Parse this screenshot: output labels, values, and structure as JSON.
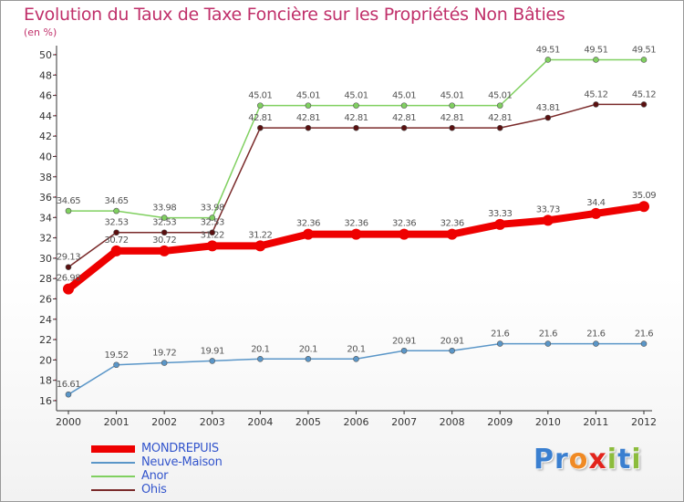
{
  "title": "Evolution du Taux de Taxe Foncière sur les Propriétés Non Bâties",
  "unit_label": "(en %)",
  "logo": {
    "letters": [
      "P",
      "r",
      "o",
      "x",
      "i",
      "t",
      "i"
    ],
    "colors": [
      "#3a7fd0",
      "#3a7fd0",
      "#f08a24",
      "#e2241c",
      "#8cbc3c",
      "#3a7fd0",
      "#8cbc3c"
    ]
  },
  "chart_data": {
    "type": "line",
    "title": "Evolution du Taux de Taxe Foncière sur les Propriétés Non Bâties",
    "ylabel": "(en %)",
    "xlabel": "",
    "x": [
      "2000",
      "2001",
      "2002",
      "2003",
      "2004",
      "2005",
      "2006",
      "2007",
      "2008",
      "2009",
      "2010",
      "2011",
      "2012"
    ],
    "ylim": [
      16,
      50
    ],
    "yticks": [
      16,
      18,
      20,
      22,
      24,
      26,
      28,
      30,
      32,
      34,
      36,
      38,
      40,
      42,
      44,
      46,
      48,
      50
    ],
    "grid": false,
    "legend": "bottom-left",
    "series": [
      {
        "name": "MONDREPUIS",
        "color": "#ee0000",
        "line_width": 8,
        "marker_r": 6,
        "values": [
          26.98,
          30.72,
          30.72,
          31.22,
          31.22,
          32.36,
          32.36,
          32.36,
          32.36,
          33.33,
          33.73,
          34.4,
          35.09
        ],
        "labels": [
          "26.98",
          "30.72",
          "30.72",
          "31.22",
          "31.22",
          "32.36",
          "32.36",
          "32.36",
          "32.36",
          "33.33",
          "33.73",
          "34.4",
          "35.09"
        ]
      },
      {
        "name": "Neuve-Maison",
        "color": "#5a96c8",
        "line_width": 1.5,
        "marker_r": 3,
        "values": [
          16.61,
          19.52,
          19.72,
          19.91,
          20.1,
          20.1,
          20.1,
          20.91,
          20.91,
          21.6,
          21.6,
          21.6,
          21.6
        ],
        "labels": [
          "16.61",
          "19.52",
          "19.72",
          "19.91",
          "20.1",
          "20.1",
          "20.1",
          "20.91",
          "20.91",
          "21.6",
          "21.6",
          "21.6",
          "21.6"
        ]
      },
      {
        "name": "Anor",
        "color": "#80d060",
        "line_width": 1.5,
        "marker_r": 3,
        "values": [
          34.65,
          34.65,
          33.98,
          33.98,
          45.01,
          45.01,
          45.01,
          45.01,
          45.01,
          45.01,
          49.51,
          49.51,
          49.51
        ],
        "labels": [
          "34.65",
          "34.65",
          "33.98",
          "33.98",
          "45.01",
          "45.01",
          "45.01",
          "45.01",
          "45.01",
          "45.01",
          "49.51",
          "49.51",
          "49.51"
        ]
      },
      {
        "name": "Ohis",
        "color": "#7a2a2a",
        "line_width": 1.5,
        "marker_r": 3,
        "values": [
          29.13,
          32.53,
          32.53,
          32.53,
          42.81,
          42.81,
          42.81,
          42.81,
          42.81,
          42.81,
          43.81,
          45.12,
          45.12
        ],
        "labels": [
          "29.13",
          "32.53",
          "32.53",
          "32.53",
          "42.81",
          "42.81",
          "42.81",
          "42.81",
          "42.81",
          "42.81",
          "43.81",
          "45.12",
          "45.12"
        ]
      }
    ]
  }
}
